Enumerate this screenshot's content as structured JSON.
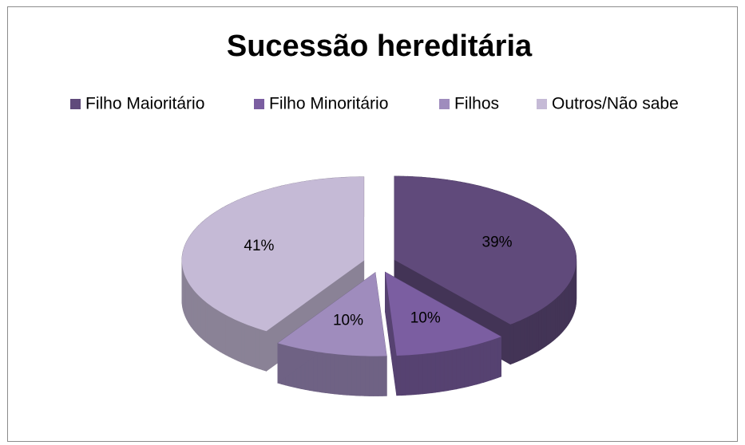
{
  "chart_data": {
    "type": "pie",
    "title": "Sucessão hereditária",
    "categories": [
      "Filho Maioritário",
      "Filho Minoritário",
      "Filhos",
      "Outros/Não sabe"
    ],
    "values": [
      39,
      10,
      10,
      41
    ],
    "value_labels": [
      "39%",
      "10%",
      "10%",
      "41%"
    ],
    "colors": [
      "#604a7b",
      "#7b5ea1",
      "#9f8cbd",
      "#c5bad6"
    ],
    "legend": "top"
  }
}
